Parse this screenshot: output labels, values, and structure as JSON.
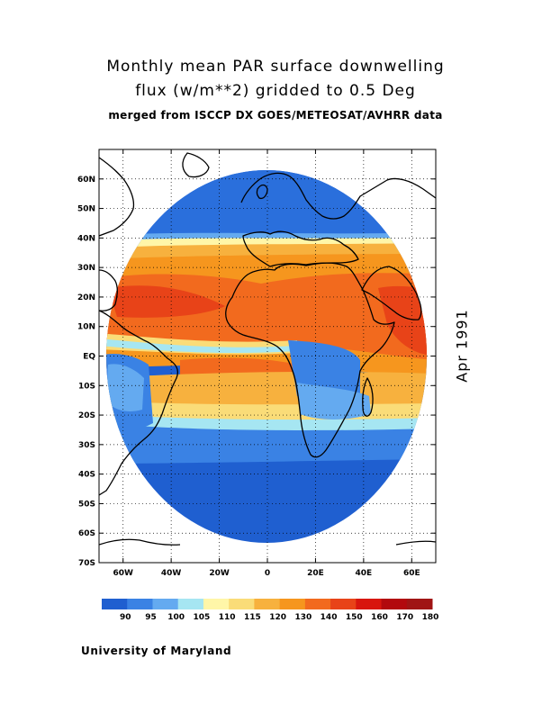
{
  "title": {
    "line1": "Monthly mean PAR surface downwelling",
    "line2": "flux (w/m**2) gridded to 0.5 Deg",
    "line3": "merged from ISCCP DX GOES/METEOSAT/AVHRR data"
  },
  "date_label": "Apr 1991",
  "credit": "University of Maryland",
  "map": {
    "lon_range": [
      -70,
      70
    ],
    "lat_range": [
      -70,
      70
    ],
    "grid": true,
    "lat_ticks": [
      {
        "v": 60,
        "label": "60N"
      },
      {
        "v": 50,
        "label": "50N"
      },
      {
        "v": 40,
        "label": "40N"
      },
      {
        "v": 30,
        "label": "30N"
      },
      {
        "v": 20,
        "label": "20N"
      },
      {
        "v": 10,
        "label": "10N"
      },
      {
        "v": 0,
        "label": "EQ"
      },
      {
        "v": -10,
        "label": "10S"
      },
      {
        "v": -20,
        "label": "20S"
      },
      {
        "v": -30,
        "label": "30S"
      },
      {
        "v": -40,
        "label": "40S"
      },
      {
        "v": -50,
        "label": "50S"
      },
      {
        "v": -60,
        "label": "60S"
      },
      {
        "v": -70,
        "label": "70S"
      }
    ],
    "lon_ticks": [
      {
        "v": -60,
        "label": "60W"
      },
      {
        "v": -40,
        "label": "40W"
      },
      {
        "v": -20,
        "label": "20W"
      },
      {
        "v": 0,
        "label": "0"
      },
      {
        "v": 20,
        "label": "20E"
      },
      {
        "v": 40,
        "label": "40E"
      },
      {
        "v": 60,
        "label": "60E"
      }
    ],
    "land_color": "#ffffff",
    "coast_color": "#000000"
  },
  "colorbar": {
    "colors": [
      "#1f5fd0",
      "#3a82e4",
      "#64aaf0",
      "#a6e6f2",
      "#fff6a8",
      "#fadc78",
      "#f7b13e",
      "#f6961e",
      "#f26a1e",
      "#e84318",
      "#d8160e",
      "#b2090e",
      "#a01414"
    ],
    "labels": [
      "90",
      "95",
      "100",
      "105",
      "110",
      "115",
      "120",
      "130",
      "140",
      "150",
      "160",
      "170",
      "180"
    ]
  }
}
